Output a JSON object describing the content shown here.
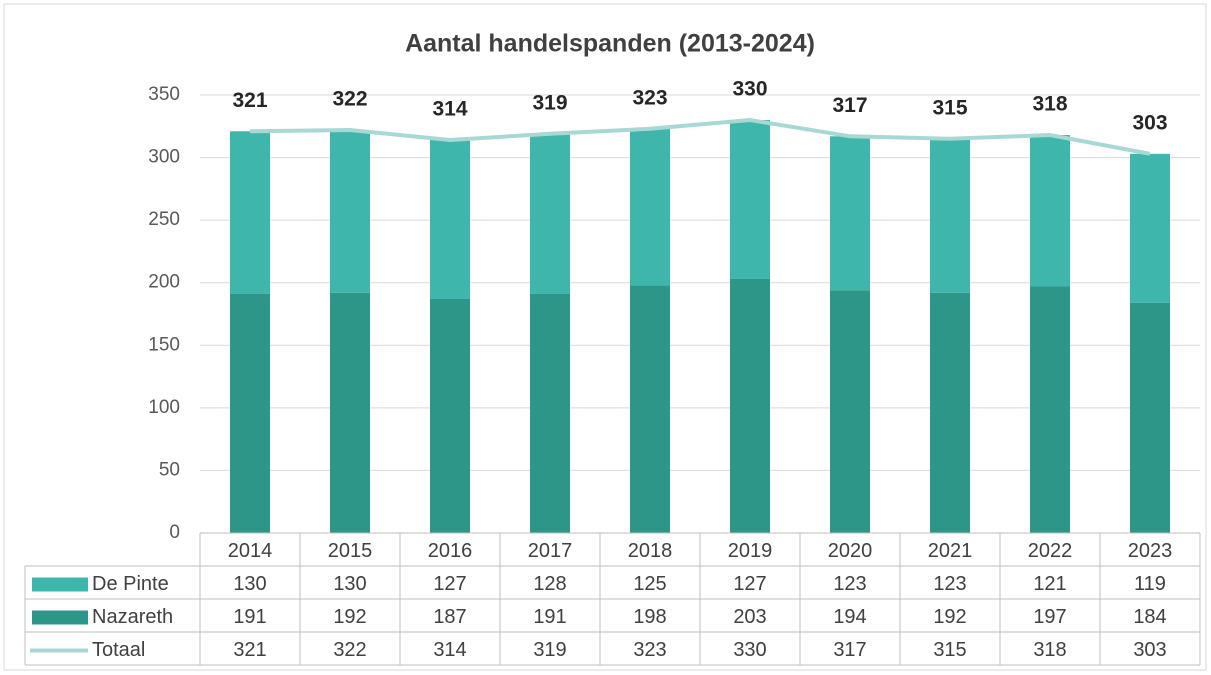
{
  "chart_data": {
    "type": "bar",
    "stacked": true,
    "title": "Aantal handelspanden (2013-2024)",
    "categories": [
      "2014",
      "2015",
      "2016",
      "2017",
      "2018",
      "2019",
      "2020",
      "2021",
      "2022",
      "2023"
    ],
    "series": [
      {
        "name": "De Pinte",
        "type": "bar",
        "color": "#3fb6ac",
        "values": [
          130,
          130,
          127,
          128,
          125,
          127,
          123,
          123,
          121,
          119
        ]
      },
      {
        "name": "Nazareth",
        "type": "bar",
        "color": "#2e9688",
        "values": [
          191,
          192,
          187,
          191,
          198,
          203,
          194,
          192,
          197,
          184
        ]
      },
      {
        "name": "Totaal",
        "type": "line",
        "color": "#a8d8d4",
        "values": [
          321,
          322,
          314,
          319,
          323,
          330,
          317,
          315,
          318,
          303
        ]
      }
    ],
    "ylim": [
      0,
      350
    ],
    "yticks": [
      0,
      50,
      100,
      150,
      200,
      250,
      300,
      350
    ],
    "grid": true,
    "data_table": true
  }
}
